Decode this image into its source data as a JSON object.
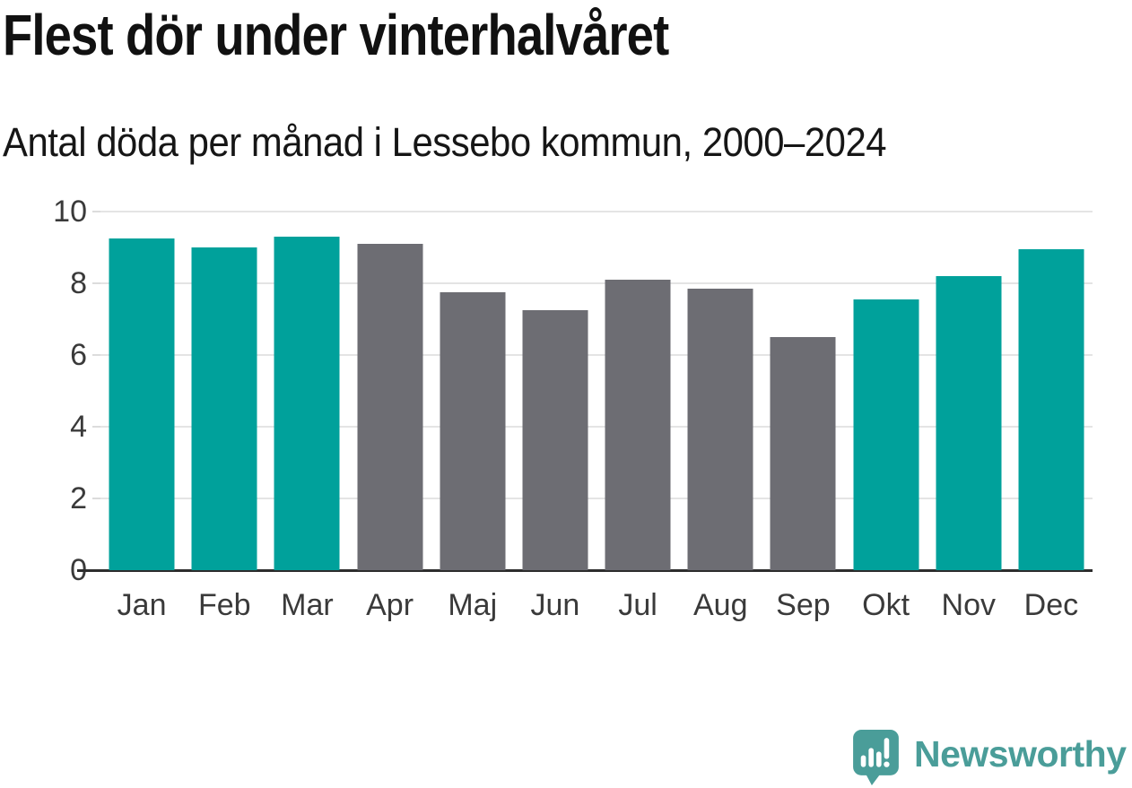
{
  "header": {
    "title": "Flest dör under vinterhalvåret",
    "subtitle": "Antal döda per månad i Lessebo kommun, 2000–2024"
  },
  "chart_data": {
    "type": "bar",
    "title": "Flest dör under vinterhalvåret",
    "subtitle": "Antal döda per månad i Lessebo kommun, 2000–2024",
    "categories": [
      "Jan",
      "Feb",
      "Mar",
      "Apr",
      "Maj",
      "Jun",
      "Jul",
      "Aug",
      "Sep",
      "Okt",
      "Nov",
      "Dec"
    ],
    "values": [
      9.25,
      9.0,
      9.3,
      9.1,
      7.75,
      7.25,
      8.1,
      7.85,
      6.5,
      7.55,
      8.2,
      8.95
    ],
    "highlighted": [
      true,
      true,
      true,
      false,
      false,
      false,
      false,
      false,
      false,
      true,
      true,
      true
    ],
    "xlabel": "",
    "ylabel": "",
    "ylim": [
      0,
      10
    ],
    "yticks": [
      0,
      2,
      4,
      6,
      8,
      10
    ],
    "grid": true,
    "legend_position": "none",
    "colors": {
      "highlight": "#00A19B",
      "default": "#6D6D73",
      "gridline": "#e4e4e4",
      "axis": "#2d2d2d",
      "tick_text": "#3a3a3a"
    }
  },
  "branding": {
    "logo_text": "Newsworthy",
    "logo_color": "#4A9D99",
    "logo_icon": "newsworthy-speech-bubble-chart-icon"
  }
}
